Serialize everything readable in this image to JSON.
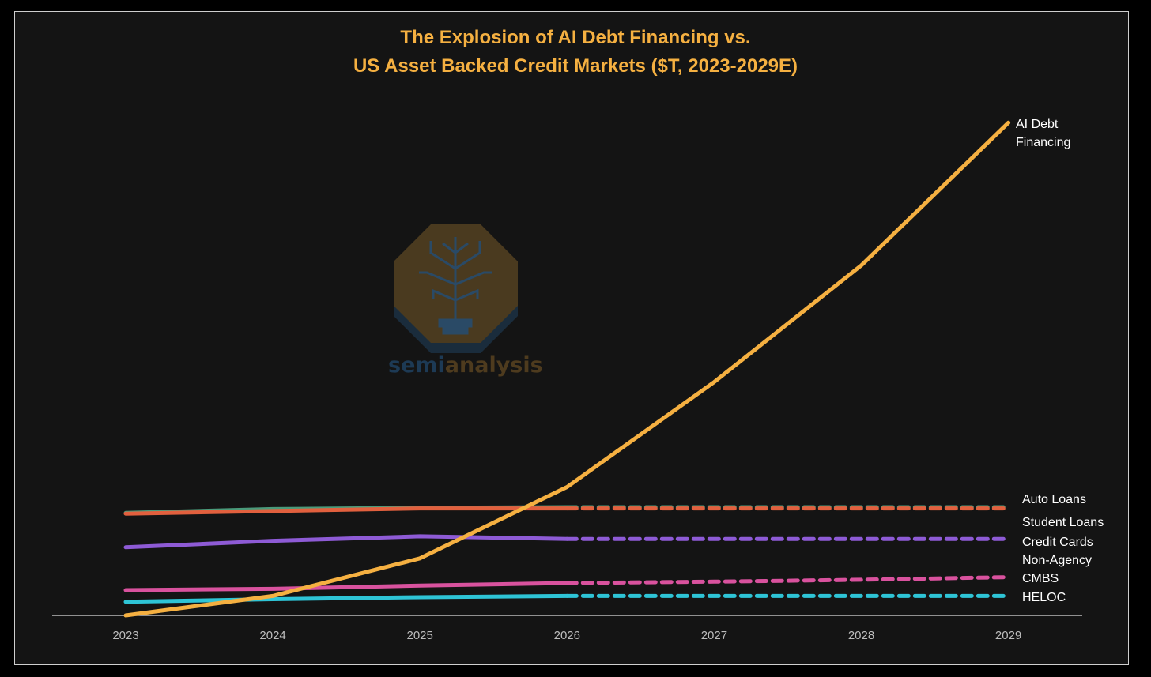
{
  "chart_data": {
    "type": "line",
    "title": "The Explosion of AI Debt Financing vs.\nUS Asset Backed Credit Markets ($T, 2023-2029E)",
    "title_lines": [
      "The Explosion of AI Debt Financing vs.",
      "US Asset Backed Credit Markets ($T, 2023-2029E)"
    ],
    "xlabel": "",
    "ylabel": "",
    "x": [
      "2023",
      "2024",
      "2025",
      "2026",
      "2027",
      "2028",
      "2029"
    ],
    "ylim": [
      0,
      7.75
    ],
    "grid": false,
    "legend": "labels at right end of each line",
    "projection_style": "dashed from 2026 to 2029",
    "series": [
      {
        "name": "AI Debt Financing",
        "label_lines": [
          "AI Debt",
          "Financing"
        ],
        "color": "#f5b041",
        "values": [
          0.0,
          0.3,
          0.88,
          1.98,
          3.6,
          5.4,
          7.6
        ],
        "dashed_from": null
      },
      {
        "name": "Auto Loans",
        "label_lines": [
          "Auto Loans"
        ],
        "color": "#4a9a7a",
        "values": [
          1.58,
          1.64,
          1.66,
          1.67,
          1.67,
          1.67,
          1.67
        ],
        "dashed_from": 3
      },
      {
        "name": "Student Loans",
        "label_lines": [
          "Student Loans"
        ],
        "color": "#e2603e",
        "values": [
          1.57,
          1.61,
          1.65,
          1.65,
          1.65,
          1.65,
          1.65
        ],
        "dashed_from": 3
      },
      {
        "name": "Credit Cards",
        "label_lines": [
          "Credit Cards"
        ],
        "color": "#8e5bd6",
        "values": [
          1.05,
          1.15,
          1.22,
          1.18,
          1.18,
          1.18,
          1.18
        ],
        "dashed_from": 3
      },
      {
        "name": "Non-Agency CMBS",
        "label_lines": [
          "Non-Agency",
          "CMBS"
        ],
        "color": "#d9529e",
        "values": [
          0.39,
          0.41,
          0.46,
          0.5,
          0.52,
          0.55,
          0.59
        ],
        "dashed_from": 3
      },
      {
        "name": "HELOC",
        "label_lines": [
          "HELOC"
        ],
        "color": "#2ec4d6",
        "values": [
          0.21,
          0.25,
          0.28,
          0.3,
          0.3,
          0.3,
          0.3
        ],
        "dashed_from": 3
      }
    ]
  },
  "watermark": {
    "text_a": "semi",
    "text_b": "analysis",
    "icon": "octagon-tree-lightbulb-icon"
  }
}
